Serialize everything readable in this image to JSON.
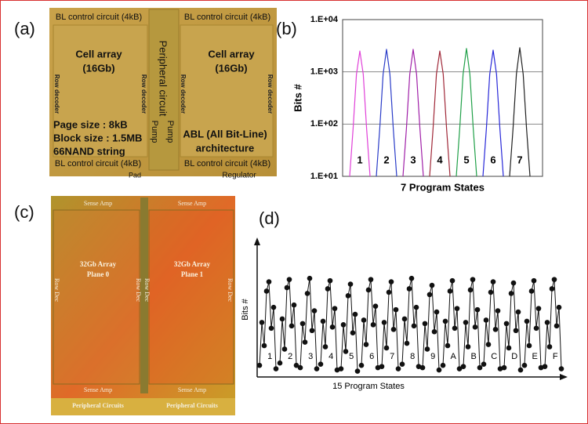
{
  "panel_labels": [
    "(a)",
    "(b)",
    "(c)",
    "(d)"
  ],
  "die_a": {
    "bl_circuits": [
      "BL control circuit (4kB)",
      "BL control circuit (4kB)",
      "BL control circuit (4kB)",
      "BL control circuit (4kB)"
    ],
    "cell_arrays": [
      {
        "title": "Cell array",
        "size": "(16Gb)"
      },
      {
        "title": "Cell array",
        "size": "(16Gb)"
      }
    ],
    "row_decoders": [
      "Row decoder",
      "Row decoder",
      "Row decoder",
      "Row decoder"
    ],
    "peripheral": "Peripheral circuit",
    "pumps": [
      "Pump",
      "Pump"
    ],
    "specs": [
      "Page size : 8kB",
      "Block size : 1.5MB",
      "66NAND string"
    ],
    "abl": [
      "ABL (All Bit-Line)",
      "architecture"
    ],
    "pad": "Pad",
    "regulator": "Regulator"
  },
  "die_c": {
    "sense_amps": [
      "Sense Amp",
      "Sense Amp",
      "Sense Amp",
      "Sense Amp"
    ],
    "planes": [
      {
        "title": "32Gb Array",
        "name": "Plane 0"
      },
      {
        "title": "32Gb Array",
        "name": "Plane 1"
      }
    ],
    "row_decs": [
      "Row Dec",
      "Row Dec",
      "Row Dec",
      "Row Dec"
    ],
    "peripherals": [
      "Peripheral Circuits",
      "Peripheral Circuits"
    ]
  },
  "chart_data": [
    {
      "type": "line",
      "xlabel": "7 Program States",
      "ylabel": "Bits #",
      "log_y": true,
      "grid": true,
      "ylim": [
        10,
        10000
      ],
      "yticks": [
        {
          "value": 10,
          "label": "1.E+01"
        },
        {
          "value": 100,
          "label": "1.E+02"
        },
        {
          "value": 1000,
          "label": "1.E+03"
        },
        {
          "value": 10000,
          "label": "1.E+04"
        }
      ],
      "series": [
        {
          "name": "1",
          "color": "#e040d8",
          "values": [
            10,
            80,
            900,
            2500,
            900,
            80,
            10
          ]
        },
        {
          "name": "2",
          "color": "#2a3cc8",
          "values": [
            10,
            80,
            900,
            2700,
            900,
            80,
            10
          ]
        },
        {
          "name": "3",
          "color": "#a020a8",
          "values": [
            10,
            80,
            900,
            2700,
            900,
            80,
            10
          ]
        },
        {
          "name": "4",
          "color": "#a02838",
          "values": [
            10,
            80,
            900,
            2500,
            900,
            80,
            10
          ]
        },
        {
          "name": "5",
          "color": "#20a048",
          "values": [
            10,
            80,
            900,
            2800,
            900,
            80,
            10
          ]
        },
        {
          "name": "6",
          "color": "#2828d8",
          "values": [
            10,
            80,
            900,
            2600,
            900,
            80,
            10
          ]
        },
        {
          "name": "7",
          "color": "#202020",
          "values": [
            10,
            80,
            900,
            2900,
            900,
            80,
            10
          ]
        }
      ]
    },
    {
      "type": "line",
      "markers": true,
      "xlabel": "15 Program States",
      "ylabel": "Bits #",
      "ylim": [
        0,
        100
      ],
      "color": "#111111",
      "series": [
        {
          "name": "1",
          "values": [
            8,
            45,
            25,
            72,
            80,
            40,
            58,
            5
          ]
        },
        {
          "name": "2",
          "values": [
            10,
            48,
            22,
            75,
            82,
            42,
            60,
            8
          ]
        },
        {
          "name": "3",
          "values": [
            6,
            44,
            28,
            70,
            83,
            38,
            55,
            5
          ]
        },
        {
          "name": "4",
          "values": [
            9,
            46,
            24,
            74,
            81,
            41,
            57,
            4
          ]
        },
        {
          "name": "5",
          "values": [
            5,
            43,
            20,
            68,
            78,
            36,
            52,
            3
          ]
        },
        {
          "name": "6",
          "values": [
            8,
            47,
            26,
            73,
            82,
            43,
            59,
            6
          ]
        },
        {
          "name": "7",
          "values": [
            7,
            45,
            23,
            71,
            80,
            39,
            56,
            5
          ]
        },
        {
          "name": "8",
          "values": [
            9,
            48,
            27,
            74,
            83,
            42,
            58,
            7
          ]
        },
        {
          "name": "9",
          "values": [
            6,
            44,
            22,
            69,
            77,
            37,
            54,
            4
          ]
        },
        {
          "name": "A",
          "values": [
            8,
            46,
            25,
            72,
            81,
            40,
            57,
            5
          ]
        },
        {
          "name": "B",
          "values": [
            7,
            45,
            24,
            73,
            82,
            41,
            56,
            6
          ]
        },
        {
          "name": "C",
          "values": [
            9,
            47,
            26,
            71,
            80,
            39,
            55,
            5
          ]
        },
        {
          "name": "D",
          "values": [
            6,
            44,
            23,
            70,
            79,
            38,
            54,
            4
          ]
        },
        {
          "name": "E",
          "values": [
            8,
            46,
            25,
            72,
            81,
            40,
            57,
            6
          ]
        },
        {
          "name": "F",
          "values": [
            7,
            45,
            24,
            74,
            82,
            42,
            58,
            5
          ]
        }
      ]
    }
  ]
}
